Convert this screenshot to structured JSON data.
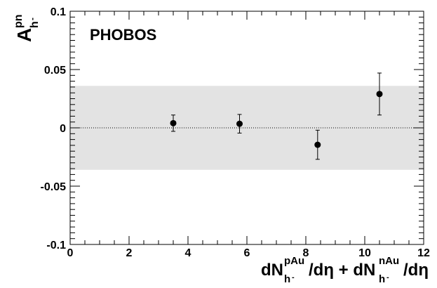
{
  "chart_data": {
    "type": "scatter",
    "title": "",
    "annotation": "PHOBOS",
    "xlabel": {
      "parts": [
        "dN",
        "pAu",
        "h",
        "-",
        "/dη + dN",
        "nAu",
        "h",
        "-",
        "/dη"
      ]
    },
    "ylabel": {
      "base": "A",
      "sup": "pn",
      "sub": "h",
      "subsup": "-"
    },
    "xlim": [
      0,
      12
    ],
    "ylim": [
      -0.1,
      0.1
    ],
    "xticks": [
      {
        "value": 0,
        "label": "0"
      },
      {
        "value": 2,
        "label": "2"
      },
      {
        "value": 4,
        "label": "4"
      },
      {
        "value": 6,
        "label": "6"
      },
      {
        "value": 8,
        "label": "8"
      },
      {
        "value": 10,
        "label": "10"
      },
      {
        "value": 12,
        "label": "12"
      }
    ],
    "yticks": [
      {
        "value": 0.1,
        "label": "0.1"
      },
      {
        "value": 0.05,
        "label": "0.05"
      },
      {
        "value": 0,
        "label": "0"
      },
      {
        "value": -0.05,
        "label": "-0.05"
      },
      {
        "value": -0.1,
        "label": "-0.1"
      }
    ],
    "series": [
      {
        "points": [
          {
            "x": 3.5,
            "y": 0.004,
            "err": 0.007
          },
          {
            "x": 5.75,
            "y": 0.0035,
            "err": 0.008
          },
          {
            "x": 8.4,
            "y": -0.0145,
            "err": 0.0125
          },
          {
            "x": 10.5,
            "y": 0.029,
            "err": 0.018
          }
        ]
      }
    ],
    "systematic_band": {
      "ymin": -0.036,
      "ymax": 0.036,
      "xmin": 0,
      "xmax": 12,
      "color": "#e3e3e3"
    },
    "reference_line": {
      "y": 0,
      "style": "dotted"
    },
    "grid": false,
    "colors": {
      "marker": "#000000",
      "axis": "#000000"
    }
  }
}
